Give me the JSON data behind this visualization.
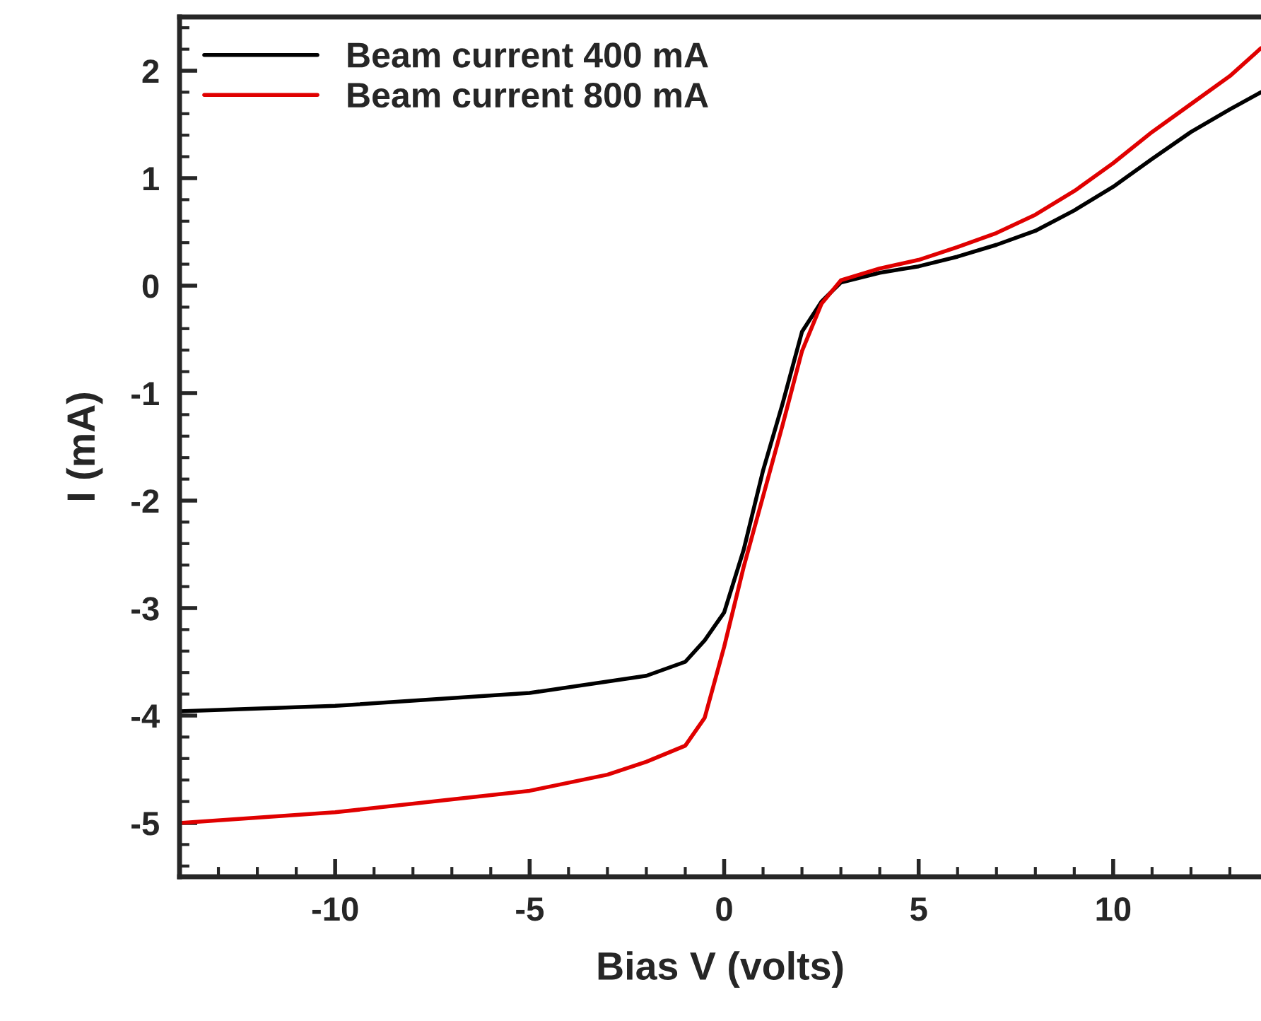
{
  "chart_data": {
    "type": "line",
    "xlabel": "Bias V (volts)",
    "ylabel": "I (mA)",
    "xlim": [
      -14,
      13.8
    ],
    "ylim": [
      -5.5,
      2.5
    ],
    "xticks": [
      -10,
      -5,
      0,
      5,
      10
    ],
    "yticks": [
      -5,
      -4,
      -3,
      -2,
      -1,
      0,
      1,
      2
    ],
    "grid": false,
    "legend": "top left",
    "marker": "none",
    "line_style": "solid",
    "series": [
      {
        "name": "Beam current 400 mA",
        "color": "#000000",
        "x": [
          -14,
          -10,
          -5,
          -2,
          -1,
          -0.5,
          0,
          0.5,
          1,
          1.5,
          2,
          2.5,
          3,
          4,
          5,
          6,
          7,
          8,
          9,
          10,
          11,
          12,
          13,
          13.8
        ],
        "values": [
          -3.96,
          -3.91,
          -3.79,
          -3.63,
          -3.5,
          -3.3,
          -3.04,
          -2.46,
          -1.72,
          -1.1,
          -0.43,
          -0.15,
          0.03,
          0.12,
          0.18,
          0.27,
          0.38,
          0.51,
          0.7,
          0.92,
          1.18,
          1.43,
          1.64,
          1.8
        ]
      },
      {
        "name": "Beam current 800 mA",
        "color": "#e00000",
        "x": [
          -14,
          -10,
          -5,
          -3,
          -2,
          -1,
          -0.5,
          0,
          0.5,
          1,
          1.5,
          2,
          2.5,
          3,
          4,
          5,
          6,
          7,
          8,
          9,
          10,
          11,
          12,
          13,
          13.8
        ],
        "values": [
          -5.0,
          -4.9,
          -4.7,
          -4.55,
          -4.43,
          -4.28,
          -4.02,
          -3.36,
          -2.62,
          -1.96,
          -1.3,
          -0.61,
          -0.17,
          0.05,
          0.16,
          0.24,
          0.36,
          0.49,
          0.66,
          0.88,
          1.14,
          1.43,
          1.69,
          1.95,
          2.21
        ]
      }
    ]
  }
}
